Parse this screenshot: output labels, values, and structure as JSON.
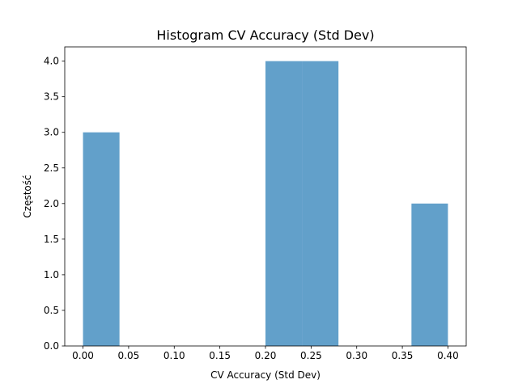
{
  "chart_data": {
    "type": "bar",
    "title": "Histogram CV Accuracy (Std Dev)",
    "xlabel": "CV Accuracy (Std Dev)",
    "ylabel": "Częstość",
    "xlim": [
      -0.02,
      0.42
    ],
    "ylim": [
      0,
      4.2
    ],
    "bin_width": 0.04,
    "bars": [
      {
        "x0": 0.0,
        "x1": 0.04,
        "count": 3
      },
      {
        "x0": 0.04,
        "x1": 0.08,
        "count": 0
      },
      {
        "x0": 0.08,
        "x1": 0.12,
        "count": 0
      },
      {
        "x0": 0.12,
        "x1": 0.16,
        "count": 0
      },
      {
        "x0": 0.16,
        "x1": 0.2,
        "count": 0
      },
      {
        "x0": 0.2,
        "x1": 0.24,
        "count": 4
      },
      {
        "x0": 0.24,
        "x1": 0.28,
        "count": 4
      },
      {
        "x0": 0.28,
        "x1": 0.32,
        "count": 0
      },
      {
        "x0": 0.32,
        "x1": 0.36,
        "count": 0
      },
      {
        "x0": 0.36,
        "x1": 0.4,
        "count": 2
      }
    ],
    "xticks": [
      0.0,
      0.05,
      0.1,
      0.15,
      0.2,
      0.25,
      0.3,
      0.35,
      0.4
    ],
    "xtick_labels": [
      "0.00",
      "0.05",
      "0.10",
      "0.15",
      "0.20",
      "0.25",
      "0.30",
      "0.35",
      "0.40"
    ],
    "yticks": [
      0.0,
      0.5,
      1.0,
      1.5,
      2.0,
      2.5,
      3.0,
      3.5,
      4.0
    ],
    "ytick_labels": [
      "0.0",
      "0.5",
      "1.0",
      "1.5",
      "2.0",
      "2.5",
      "3.0",
      "3.5",
      "4.0"
    ],
    "bar_color": "#1f77b4",
    "bar_opacity": 0.7,
    "grid": false,
    "legend": "none"
  }
}
